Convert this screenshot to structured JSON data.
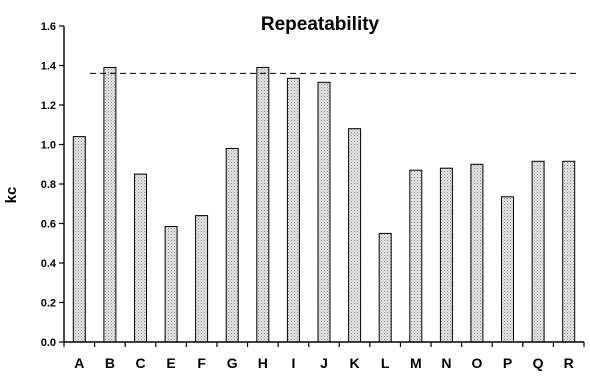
{
  "chart_data": {
    "type": "bar",
    "title": "Repeatability",
    "xlabel": "",
    "ylabel": "kc",
    "categories": [
      "A",
      "B",
      "C",
      "E",
      "F",
      "G",
      "H",
      "I",
      "J",
      "K",
      "L",
      "M",
      "N",
      "O",
      "P",
      "Q",
      "R"
    ],
    "values": [
      1.04,
      1.39,
      0.85,
      0.585,
      0.64,
      0.98,
      1.39,
      1.335,
      1.315,
      1.08,
      0.55,
      0.87,
      0.88,
      0.9,
      0.735,
      0.915,
      0.915
    ],
    "ylim": [
      0,
      1.6
    ],
    "yticks": [
      "0.0",
      "0.2",
      "0.4",
      "0.6",
      "0.8",
      "1.0",
      "1.2",
      "1.4",
      "1.6"
    ],
    "reference_line": 1.36,
    "bar_color": "#d9d9d9",
    "grid": false,
    "legend": "none"
  }
}
